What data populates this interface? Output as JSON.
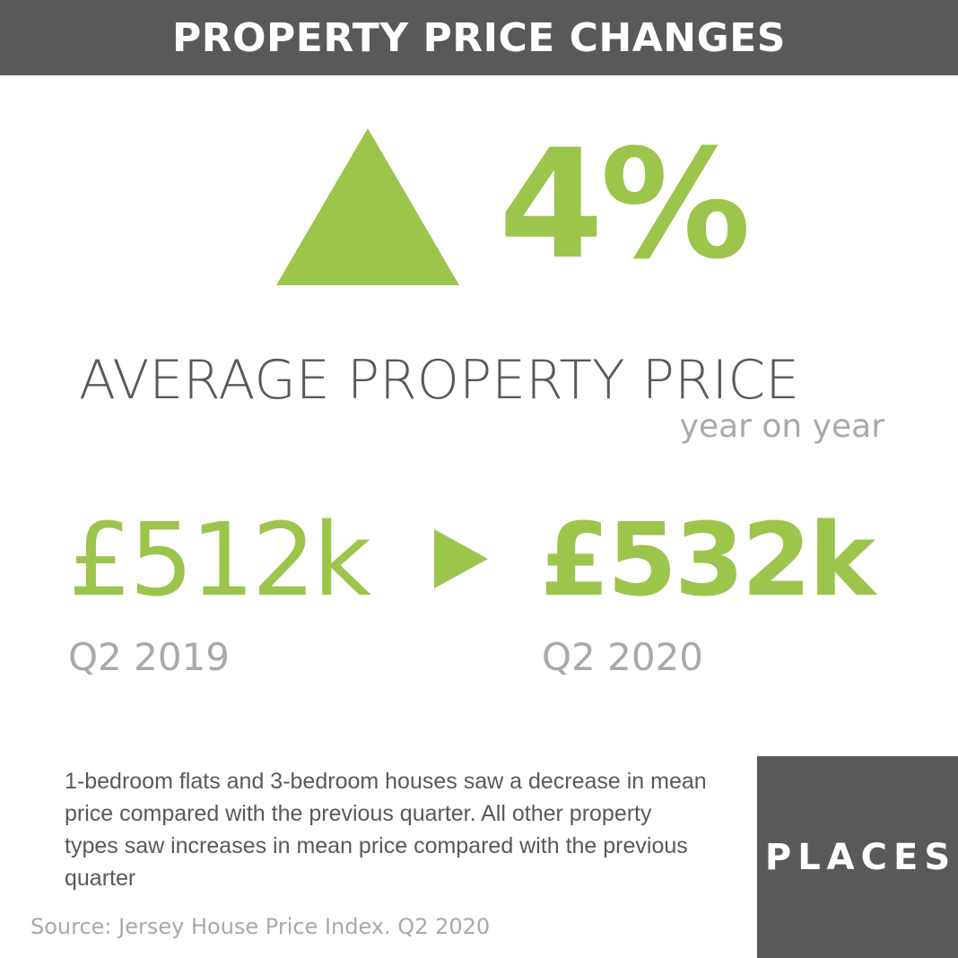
{
  "header": {
    "title": "PROPERTY PRICE CHANGES"
  },
  "headline": {
    "change": "4%",
    "direction_icon": "triangle-up-icon",
    "subject": "AVERAGE PROPERTY PRICE",
    "subject_sub": "year on year"
  },
  "comparison": {
    "from_value": "£512k",
    "from_period": "Q2 2019",
    "arrow_icon": "triangle-right-icon",
    "to_value": "£532k",
    "to_period": "Q2 2020"
  },
  "note": "1-bedroom flats and 3-bedroom houses saw a decrease in mean price compared with the previous quarter. All other property types saw increases in mean price compared with the previous quarter",
  "source": "Source: Jersey House Price Index. Q2 2020",
  "logo": {
    "text": "PLACES"
  },
  "colors": {
    "accent": "#9bc54b",
    "dark": "#58595b",
    "muted": "#a7a9ac",
    "background": "#ffffff"
  }
}
